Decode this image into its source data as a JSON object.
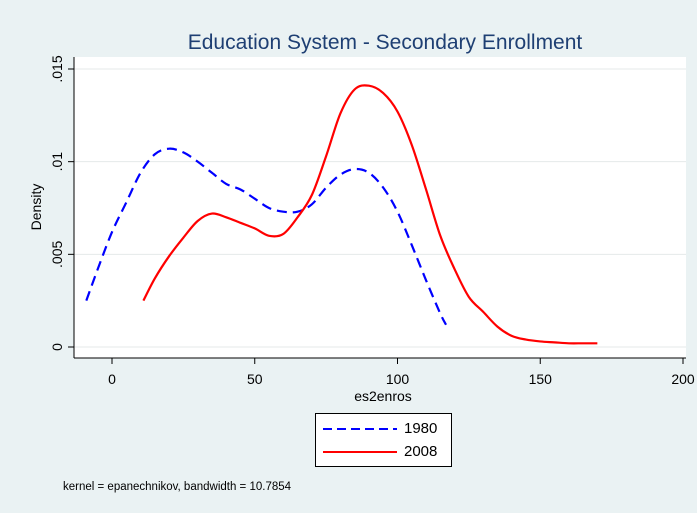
{
  "chart_data": {
    "type": "line",
    "title": "Education System - Secondary Enrollment",
    "xlabel": "es2enros",
    "ylabel": "Density",
    "xlim": [
      -10,
      200
    ],
    "ylim": [
      0,
      0.0155
    ],
    "xticks": [
      0,
      50,
      100,
      150,
      200
    ],
    "xtick_labels": [
      "0",
      "50",
      "100",
      "150",
      "200"
    ],
    "yticks": [
      0,
      0.005,
      0.01,
      0.015
    ],
    "ytick_labels": [
      "0",
      ".005",
      ".01",
      ".015"
    ],
    "grid": true,
    "legend_position": "bottom",
    "series": [
      {
        "name": "1980",
        "color": "#0000ff",
        "dash": "dashed",
        "x": [
          -9,
          -5,
          0,
          5,
          10,
          15,
          20,
          25,
          30,
          35,
          40,
          45,
          50,
          55,
          60,
          65,
          70,
          75,
          80,
          85,
          90,
          95,
          100,
          105,
          110,
          115,
          117
        ],
        "y": [
          0.0025,
          0.0042,
          0.0062,
          0.0078,
          0.0094,
          0.0104,
          0.0107,
          0.0105,
          0.01,
          0.0094,
          0.0088,
          0.0085,
          0.008,
          0.0075,
          0.0073,
          0.0073,
          0.0077,
          0.0086,
          0.0093,
          0.0096,
          0.0094,
          0.0086,
          0.0073,
          0.0055,
          0.0036,
          0.0018,
          0.0012
        ]
      },
      {
        "name": "2008",
        "color": "#ff0000",
        "dash": "solid",
        "x": [
          11,
          15,
          20,
          25,
          30,
          35,
          40,
          45,
          50,
          55,
          60,
          65,
          70,
          75,
          80,
          85,
          90,
          95,
          100,
          105,
          110,
          115,
          120,
          125,
          130,
          135,
          140,
          145,
          150,
          155,
          160,
          165,
          170
        ],
        "y": [
          0.0025,
          0.0037,
          0.0049,
          0.0059,
          0.0068,
          0.0072,
          0.007,
          0.0067,
          0.0064,
          0.006,
          0.0061,
          0.007,
          0.0082,
          0.0103,
          0.0126,
          0.0139,
          0.0141,
          0.0137,
          0.0127,
          0.0109,
          0.0085,
          0.006,
          0.0042,
          0.0027,
          0.0019,
          0.0011,
          0.0006,
          0.0004,
          0.0003,
          0.00025,
          0.0002,
          0.0002,
          0.0002
        ]
      }
    ],
    "note": "kernel = epanechnikov, bandwidth = 10.7854"
  }
}
